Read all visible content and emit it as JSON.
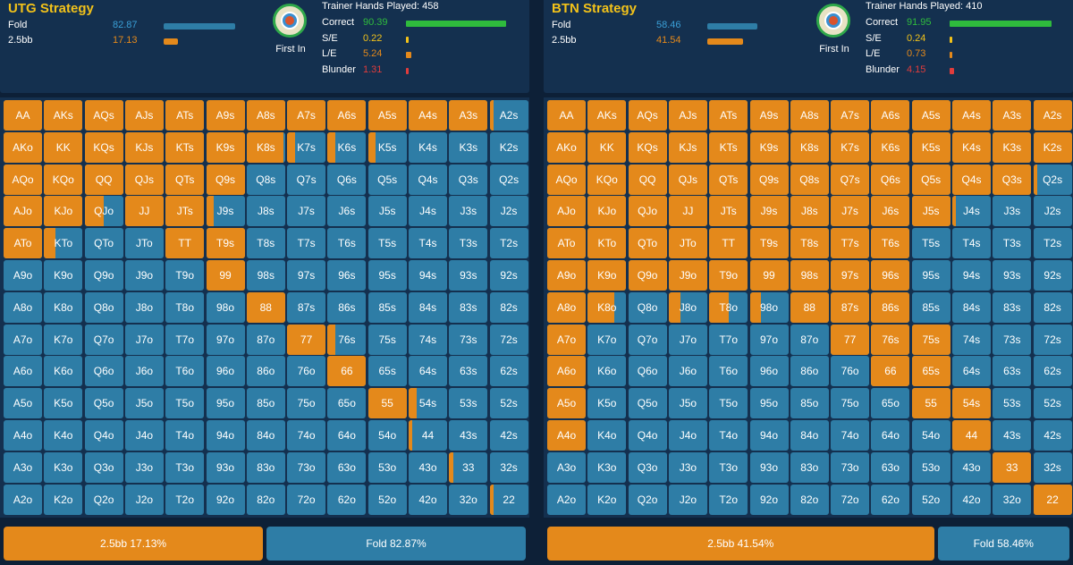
{
  "colors": {
    "raise": "#e4891b",
    "fold": "#2e7da6",
    "correct": "#2fbb3d",
    "minor": "#f2c21a",
    "major": "#e4891b",
    "blunder": "#e03c3c"
  },
  "icon": "first-in-chip-icon",
  "ranks": [
    "A",
    "K",
    "Q",
    "J",
    "T",
    "9",
    "8",
    "7",
    "6",
    "5",
    "4",
    "3",
    "2"
  ],
  "panels": [
    {
      "title": "UTG Strategy",
      "actions": [
        {
          "name": "Fold",
          "pct": "82.87",
          "value": 82.87
        },
        {
          "name": "2.5bb",
          "pct": "17.13",
          "value": 17.13
        }
      ],
      "position_label": "First In",
      "hands_played": "Trainer Hands Played: 458",
      "stats": [
        {
          "name": "Correct",
          "pct": "90.39",
          "value": 90.39
        },
        {
          "name": "S/E",
          "pct": "0.22",
          "value": 0.22
        },
        {
          "name": "L/E",
          "pct": "5.24",
          "value": 5.24
        },
        {
          "name": "Blunder",
          "pct": "1.31",
          "value": 1.31
        }
      ],
      "raise_freq": [
        [
          1,
          1,
          1,
          1,
          1,
          1,
          1,
          1,
          1,
          1,
          1,
          1,
          0.1
        ],
        [
          1,
          1,
          1,
          1,
          1,
          1,
          0.95,
          0.2,
          0.2,
          0.2,
          0,
          0,
          0
        ],
        [
          1,
          1,
          1,
          1,
          1,
          1,
          0,
          0,
          0,
          0,
          0,
          0,
          0
        ],
        [
          1,
          1,
          0.5,
          1,
          1,
          0.2,
          0,
          0,
          0,
          0,
          0,
          0,
          0
        ],
        [
          1,
          0.3,
          0,
          0,
          1,
          1,
          0,
          0,
          0,
          0,
          0,
          0,
          0
        ],
        [
          0,
          0,
          0,
          0,
          0,
          1,
          0,
          0,
          0,
          0,
          0,
          0,
          0
        ],
        [
          0,
          0,
          0,
          0,
          0,
          0,
          1,
          0,
          0,
          0,
          0,
          0,
          0
        ],
        [
          0,
          0,
          0,
          0,
          0,
          0,
          0,
          1,
          0.2,
          0,
          0,
          0,
          0
        ],
        [
          0,
          0,
          0,
          0,
          0,
          0,
          0,
          0,
          1,
          0,
          0,
          0,
          0
        ],
        [
          0,
          0,
          0,
          0,
          0,
          0,
          0,
          0,
          0,
          1,
          0.2,
          0,
          0
        ],
        [
          0,
          0,
          0,
          0,
          0,
          0,
          0,
          0,
          0,
          0,
          0.1,
          0,
          0
        ],
        [
          0,
          0,
          0,
          0,
          0,
          0,
          0,
          0,
          0,
          0,
          0,
          0.1,
          0
        ],
        [
          0,
          0,
          0,
          0,
          0,
          0,
          0,
          0,
          0,
          0,
          0,
          0,
          0.1
        ]
      ],
      "raise_button": "2.5bb 17.13%",
      "fold_button": "Fold 82.87%",
      "raise_btn_value": 17.13
    },
    {
      "title": "BTN Strategy",
      "actions": [
        {
          "name": "Fold",
          "pct": "58.46",
          "value": 58.46
        },
        {
          "name": "2.5bb",
          "pct": "41.54",
          "value": 41.54
        }
      ],
      "position_label": "First In",
      "hands_played": "Trainer Hands Played: 410",
      "stats": [
        {
          "name": "Correct",
          "pct": "91.95",
          "value": 91.95
        },
        {
          "name": "S/E",
          "pct": "0.24",
          "value": 0.24
        },
        {
          "name": "L/E",
          "pct": "0.73",
          "value": 0.73
        },
        {
          "name": "Blunder",
          "pct": "4.15",
          "value": 4.15
        }
      ],
      "raise_freq": [
        [
          1,
          1,
          1,
          1,
          1,
          1,
          1,
          1,
          1,
          1,
          1,
          1,
          1
        ],
        [
          1,
          1,
          1,
          1,
          1,
          1,
          1,
          1,
          1,
          1,
          1,
          1,
          1
        ],
        [
          1,
          1,
          1,
          1,
          1,
          1,
          1,
          1,
          1,
          1,
          1,
          1,
          0.1
        ],
        [
          1,
          1,
          1,
          1,
          1,
          1,
          1,
          1,
          1,
          1,
          0.1,
          0,
          0
        ],
        [
          1,
          1,
          1,
          1,
          1,
          1,
          1,
          1,
          1,
          0,
          0,
          0,
          0
        ],
        [
          1,
          1,
          1,
          1,
          1,
          1,
          1,
          1,
          1,
          0,
          0,
          0,
          0
        ],
        [
          1,
          0.7,
          0,
          0.3,
          0.5,
          0.3,
          1,
          1,
          1,
          0,
          0,
          0,
          0
        ],
        [
          1,
          0,
          0,
          0,
          0,
          0,
          0,
          1,
          1,
          1,
          0,
          0,
          0
        ],
        [
          1,
          0,
          0,
          0,
          0,
          0,
          0,
          0,
          1,
          1,
          0,
          0,
          0
        ],
        [
          1,
          0,
          0,
          0,
          0,
          0,
          0,
          0,
          0,
          1,
          1,
          0,
          0
        ],
        [
          1,
          0,
          0,
          0,
          0,
          0,
          0,
          0,
          0,
          0,
          1,
          0,
          0
        ],
        [
          0,
          0,
          0,
          0,
          0,
          0,
          0,
          0,
          0,
          0,
          0,
          1,
          0
        ],
        [
          0,
          0,
          0,
          0,
          0,
          0,
          0,
          0,
          0,
          0,
          0,
          0,
          1
        ]
      ],
      "raise_button": "2.5bb 41.54%",
      "fold_button": "Fold 58.46%",
      "raise_btn_value": 41.54
    }
  ]
}
